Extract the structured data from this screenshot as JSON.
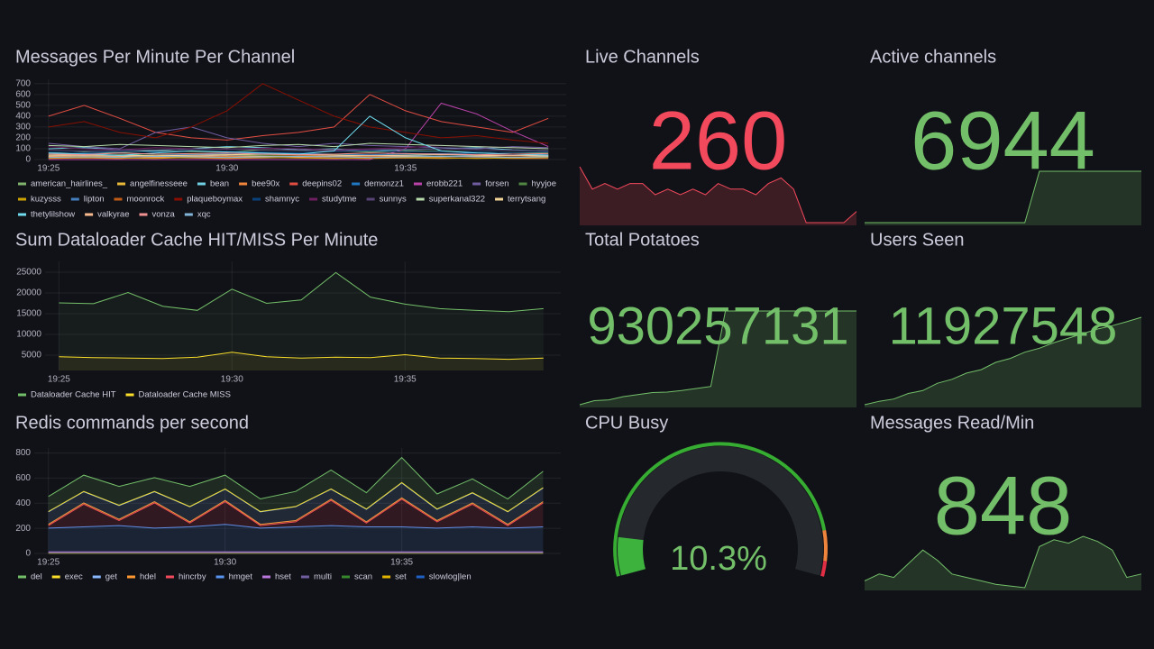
{
  "chart_data": [
    {
      "type": "line",
      "title": "Messages Per Minute Per Channel",
      "x": [
        1165,
        1166,
        1167,
        1168,
        1169,
        1170,
        1171,
        1172,
        1173,
        1174,
        1175,
        1176,
        1177,
        1178,
        1179
      ],
      "xlim": [
        1164.6,
        1179.5
      ],
      "xticks": [
        {
          "value": 1165,
          "label": "19:25"
        },
        {
          "value": 1170,
          "label": "19:30"
        },
        {
          "value": 1175,
          "label": "19:35"
        }
      ],
      "ylim": [
        0,
        740
      ],
      "yticks": [
        0,
        100,
        200,
        300,
        400,
        500,
        600,
        700
      ],
      "grid": true,
      "series": [
        {
          "name": "american_hairlines_",
          "color": "#7EB26D",
          "values": [
            60,
            70,
            65,
            80,
            75,
            70,
            90,
            85,
            80,
            70,
            75,
            80,
            70,
            65,
            60
          ]
        },
        {
          "name": "angelfinesseee",
          "color": "#EAB839",
          "values": [
            20,
            25,
            30,
            25,
            20,
            30,
            35,
            30,
            25,
            20,
            25,
            30,
            25,
            20,
            25
          ]
        },
        {
          "name": "bean",
          "color": "#6ED0E0",
          "values": [
            100,
            110,
            90,
            80,
            100,
            120,
            110,
            90,
            100,
            80,
            90,
            100,
            110,
            90,
            80
          ]
        },
        {
          "name": "bee90x",
          "color": "#EF843C",
          "values": [
            10,
            15,
            10,
            20,
            15,
            10,
            15,
            20,
            15,
            10,
            15,
            10,
            15,
            10,
            10
          ]
        },
        {
          "name": "deepins02",
          "color": "#E24D42",
          "values": [
            400,
            500,
            380,
            250,
            200,
            180,
            220,
            250,
            300,
            600,
            450,
            350,
            300,
            250,
            380
          ]
        },
        {
          "name": "demonzz1",
          "color": "#1F78C1",
          "values": [
            30,
            40,
            35,
            30,
            40,
            45,
            40,
            35,
            30,
            40,
            35,
            30,
            35,
            40,
            30
          ]
        },
        {
          "name": "erobb221",
          "color": "#BA43A9",
          "values": [
            0,
            0,
            0,
            0,
            0,
            0,
            0,
            0,
            0,
            0,
            100,
            520,
            420,
            260,
            120
          ]
        },
        {
          "name": "forsen",
          "color": "#705DA0",
          "values": [
            150,
            120,
            100,
            250,
            300,
            200,
            150,
            120,
            150,
            130,
            120,
            110,
            100,
            120,
            110
          ]
        },
        {
          "name": "hyyjoe",
          "color": "#508642",
          "values": [
            40,
            35,
            45,
            40,
            50,
            45,
            40,
            35,
            45,
            40,
            50,
            45,
            40,
            35,
            40
          ]
        },
        {
          "name": "kuzysss",
          "color": "#CCA300",
          "values": [
            15,
            20,
            15,
            10,
            20,
            15,
            20,
            15,
            10,
            15,
            20,
            15,
            10,
            15,
            20
          ]
        },
        {
          "name": "lipton",
          "color": "#447EBC",
          "values": [
            50,
            55,
            60,
            50,
            45,
            55,
            60,
            55,
            50,
            45,
            50,
            55,
            60,
            50,
            45
          ]
        },
        {
          "name": "moonrock",
          "color": "#C15C17",
          "values": [
            25,
            30,
            25,
            35,
            30,
            25,
            30,
            35,
            30,
            25,
            30,
            25,
            30,
            35,
            30
          ]
        },
        {
          "name": "plaqueboymax",
          "color": "#890F02",
          "values": [
            300,
            350,
            250,
            200,
            300,
            450,
            700,
            550,
            400,
            300,
            250,
            200,
            220,
            180,
            150
          ]
        },
        {
          "name": "shamnyc",
          "color": "#0A437C",
          "values": [
            70,
            65,
            75,
            70,
            80,
            75,
            70,
            65,
            75,
            80,
            70,
            75,
            70,
            65,
            70
          ]
        },
        {
          "name": "studytme",
          "color": "#6D1F62",
          "values": [
            120,
            100,
            90,
            110,
            100,
            95,
            105,
            100,
            90,
            100,
            110,
            130,
            120,
            110,
            100
          ]
        },
        {
          "name": "sunnys",
          "color": "#584477",
          "values": [
            90,
            80,
            85,
            90,
            95,
            100,
            90,
            85,
            80,
            90,
            95,
            100,
            90,
            85,
            80
          ]
        },
        {
          "name": "superkanal322",
          "color": "#B7DBAB",
          "values": [
            130,
            120,
            140,
            130,
            120,
            110,
            130,
            140,
            120,
            150,
            140,
            130,
            120,
            110,
            100
          ]
        },
        {
          "name": "terrytsang",
          "color": "#F4D598",
          "values": [
            40,
            45,
            40,
            35,
            40,
            45,
            50,
            45,
            40,
            35,
            40,
            45,
            40,
            35,
            40
          ]
        },
        {
          "name": "thetylilshow",
          "color": "#70DBED",
          "values": [
            60,
            50,
            40,
            60,
            80,
            70,
            60,
            50,
            80,
            400,
            200,
            80,
            60,
            50,
            40
          ]
        },
        {
          "name": "valkyrae",
          "color": "#F9BA8F",
          "values": [
            30,
            35,
            30,
            25,
            30,
            35,
            30,
            25,
            30,
            35,
            30,
            25,
            30,
            35,
            30
          ]
        },
        {
          "name": "vonza",
          "color": "#F29191",
          "values": [
            50,
            45,
            60,
            50,
            55,
            60,
            50,
            45,
            50,
            60,
            55,
            50,
            45,
            50,
            55
          ]
        },
        {
          "name": "xqc",
          "color": "#82B5D8",
          "values": [
            20,
            25,
            20,
            30,
            25,
            20,
            25,
            30,
            25,
            20,
            25,
            30,
            25,
            20,
            25
          ]
        }
      ]
    },
    {
      "type": "line",
      "title": "Sum Dataloader Cache HIT/MISS Per Minute",
      "fill": true,
      "x": [
        1165,
        1166,
        1167,
        1168,
        1169,
        1170,
        1171,
        1172,
        1173,
        1174,
        1175,
        1176,
        1177,
        1178,
        1179
      ],
      "xlim": [
        1164.6,
        1179.5
      ],
      "xticks": [
        {
          "value": 1165,
          "label": "19:25"
        },
        {
          "value": 1170,
          "label": "19:30"
        },
        {
          "value": 1175,
          "label": "19:35"
        }
      ],
      "ylim": [
        1300,
        27600
      ],
      "yticks": [
        5000,
        10000,
        15000,
        20000,
        25000
      ],
      "grid": true,
      "series": [
        {
          "name": "Dataloader Cache HIT",
          "color": "#73BF69",
          "values": [
            17600,
            17400,
            20100,
            16800,
            15800,
            20900,
            17500,
            18300,
            24900,
            19000,
            17300,
            16200,
            15800,
            15500,
            16200
          ]
        },
        {
          "name": "Dataloader Cache MISS",
          "color": "#FADE2A",
          "values": [
            4600,
            4400,
            4300,
            4200,
            4500,
            5700,
            4600,
            4300,
            4500,
            4400,
            5100,
            4300,
            4200,
            4000,
            4300
          ]
        }
      ]
    },
    {
      "type": "stat",
      "title": "Live Channels",
      "value": 260,
      "color": "#F2495C",
      "values": [
        268,
        264,
        265,
        264,
        265,
        265,
        263,
        264,
        263,
        264,
        263,
        265,
        264,
        264,
        263,
        265,
        266,
        264,
        258,
        258,
        258,
        258,
        260
      ]
    },
    {
      "type": "stat",
      "title": "Active channels",
      "value": 6944,
      "color": "#73BF69",
      "values": [
        6900,
        6900,
        6900,
        6900,
        6900,
        6900,
        6900,
        6900,
        6900,
        6900,
        6900,
        6900,
        6944,
        6944,
        6944,
        6944,
        6944,
        6944,
        6944,
        6944
      ]
    },
    {
      "type": "stat",
      "title": "Total Potatoes",
      "value": 930257131,
      "color": "#73BF69",
      "values": [
        930256900,
        930256910,
        930256912,
        930256920,
        930256925,
        930256930,
        930256931,
        930256935,
        930256940,
        930256945,
        930257131,
        930257131,
        930257131,
        930257131,
        930257131,
        930257131,
        930257131,
        930257131,
        930257131,
        930257131
      ]
    },
    {
      "type": "stat",
      "title": "Users Seen",
      "value": 11927548,
      "color": "#73BF69",
      "values": [
        11926000,
        11926060,
        11926100,
        11926200,
        11926250,
        11926380,
        11926450,
        11926560,
        11926620,
        11926750,
        11926820,
        11926930,
        11927000,
        11927100,
        11927180,
        11927260,
        11927340,
        11927400,
        11927470,
        11927548
      ]
    },
    {
      "type": "stacked-area",
      "title": "Redis commands per second",
      "x": [
        1165,
        1166,
        1167,
        1168,
        1169,
        1170,
        1171,
        1172,
        1173,
        1174,
        1175,
        1176,
        1177,
        1178,
        1179
      ],
      "xlim": [
        1164.6,
        1179.5
      ],
      "xticks": [
        {
          "value": 1165,
          "label": "19:25"
        },
        {
          "value": 1170,
          "label": "19:30"
        },
        {
          "value": 1175,
          "label": "19:35"
        }
      ],
      "ylim": [
        0,
        840
      ],
      "yticks": [
        0,
        200,
        400,
        600,
        800
      ],
      "grid": true,
      "series": [
        {
          "name": "del",
          "color": "#73BF69",
          "values": [
            120,
            130,
            150,
            110,
            160,
            110,
            100,
            120,
            150,
            130,
            200,
            120,
            110,
            100,
            130
          ]
        },
        {
          "name": "exec",
          "color": "#FADE2A",
          "values": [
            2,
            2,
            2,
            2,
            2,
            2,
            2,
            2,
            2,
            2,
            2,
            2,
            2,
            2,
            2
          ]
        },
        {
          "name": "get",
          "color": "#8AB8FF",
          "values": [
            100,
            90,
            110,
            80,
            120,
            90,
            100,
            110,
            80,
            100,
            120,
            90,
            80,
            100,
            110
          ]
        },
        {
          "name": "hdel",
          "color": "#FF9830",
          "values": [
            10,
            10,
            10,
            10,
            10,
            10,
            10,
            10,
            10,
            10,
            10,
            10,
            10,
            10,
            10
          ]
        },
        {
          "name": "hincrby",
          "color": "#F2495C",
          "values": [
            20,
            180,
            40,
            200,
            30,
            180,
            20,
            40,
            200,
            30,
            220,
            50,
            180,
            20,
            190
          ]
        },
        {
          "name": "hmget",
          "color": "#5794F2",
          "values": [
            190,
            200,
            210,
            190,
            200,
            220,
            190,
            200,
            210,
            200,
            200,
            190,
            200,
            190,
            200
          ]
        },
        {
          "name": "hset",
          "color": "#B877D9",
          "values": [
            5,
            5,
            5,
            5,
            5,
            5,
            5,
            5,
            5,
            5,
            5,
            5,
            5,
            5,
            5
          ]
        },
        {
          "name": "multi",
          "color": "#705DA0",
          "values": [
            2,
            2,
            2,
            2,
            2,
            2,
            2,
            2,
            2,
            2,
            2,
            2,
            2,
            2,
            2
          ]
        },
        {
          "name": "scan",
          "color": "#37872D",
          "values": [
            3,
            3,
            3,
            3,
            3,
            3,
            3,
            3,
            3,
            3,
            3,
            3,
            3,
            3,
            3
          ]
        },
        {
          "name": "set",
          "color": "#E0B400",
          "values": [
            1,
            1,
            1,
            1,
            1,
            1,
            1,
            1,
            1,
            1,
            1,
            1,
            1,
            1,
            1
          ]
        },
        {
          "name": "slowlog|len",
          "color": "#1F60C4",
          "values": [
            1,
            1,
            1,
            1,
            1,
            1,
            1,
            1,
            1,
            1,
            1,
            1,
            1,
            1,
            1
          ]
        }
      ]
    },
    {
      "type": "gauge",
      "title": "CPU Busy",
      "value": 10.3,
      "value_labels": "10.3%",
      "color": "#3DB33D",
      "text_color": "#73BF69",
      "ylim": [
        0,
        100
      ],
      "thresholds": [
        {
          "value": 0,
          "color": "#37AC32"
        },
        {
          "value": 88,
          "color": "#EF843C"
        },
        {
          "value": 96,
          "color": "#E02F44"
        }
      ]
    },
    {
      "type": "stat",
      "title": "Messages Read/Min",
      "value": 848,
      "color": "#73BF69",
      "values": [
        600,
        640,
        620,
        700,
        780,
        720,
        640,
        620,
        600,
        580,
        570,
        560,
        800,
        840,
        820,
        860,
        830,
        780,
        620,
        640
      ]
    }
  ]
}
